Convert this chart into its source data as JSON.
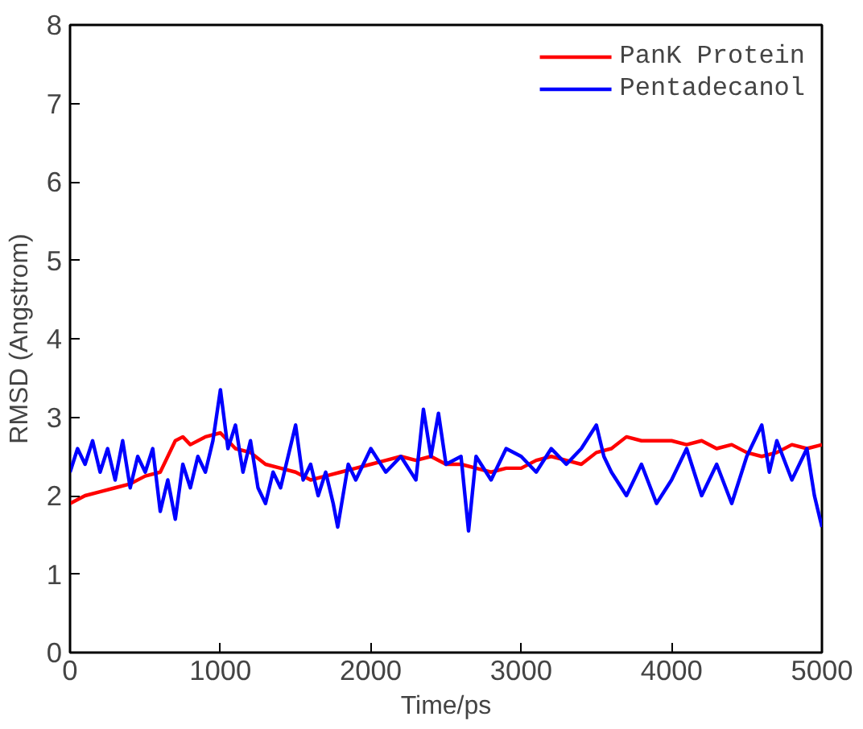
{
  "chart_data": {
    "type": "line",
    "xlabel": "Time/ps",
    "ylabel": "RMSD (Angstrom)",
    "xlim": [
      0,
      5000
    ],
    "ylim": [
      0,
      8
    ],
    "xticks": [
      0,
      1000,
      2000,
      3000,
      4000,
      5000
    ],
    "yticks": [
      0,
      1,
      2,
      3,
      4,
      5,
      6,
      7,
      8
    ],
    "grid": false,
    "legend": "top right",
    "line_style": "solid",
    "marker": "none",
    "series": [
      {
        "name": "PanK Protein",
        "color": "#ff0000",
        "x": [
          0,
          100,
          200,
          300,
          400,
          500,
          600,
          700,
          750,
          800,
          900,
          1000,
          1100,
          1200,
          1300,
          1400,
          1500,
          1600,
          1700,
          1800,
          1900,
          2000,
          2100,
          2200,
          2300,
          2400,
          2500,
          2600,
          2700,
          2800,
          2900,
          3000,
          3100,
          3200,
          3300,
          3400,
          3500,
          3600,
          3700,
          3800,
          3900,
          4000,
          4100,
          4200,
          4300,
          4400,
          4500,
          4600,
          4700,
          4800,
          4900,
          5000
        ],
        "values": [
          1.9,
          2.0,
          2.05,
          2.1,
          2.15,
          2.25,
          2.3,
          2.7,
          2.75,
          2.65,
          2.75,
          2.8,
          2.6,
          2.55,
          2.4,
          2.35,
          2.3,
          2.2,
          2.25,
          2.3,
          2.35,
          2.4,
          2.45,
          2.5,
          2.45,
          2.5,
          2.4,
          2.4,
          2.35,
          2.3,
          2.35,
          2.35,
          2.45,
          2.5,
          2.45,
          2.4,
          2.55,
          2.6,
          2.75,
          2.7,
          2.7,
          2.7,
          2.65,
          2.7,
          2.6,
          2.65,
          2.55,
          2.5,
          2.55,
          2.65,
          2.6,
          2.65
        ]
      },
      {
        "name": "Pentadecanol",
        "color": "#0000ff",
        "x": [
          0,
          50,
          100,
          150,
          200,
          250,
          300,
          350,
          400,
          450,
          500,
          550,
          600,
          650,
          700,
          750,
          800,
          850,
          900,
          950,
          1000,
          1050,
          1100,
          1150,
          1200,
          1250,
          1300,
          1350,
          1400,
          1450,
          1500,
          1550,
          1600,
          1650,
          1700,
          1750,
          1780,
          1850,
          1900,
          2000,
          2100,
          2200,
          2300,
          2350,
          2400,
          2450,
          2500,
          2600,
          2650,
          2700,
          2800,
          2900,
          3000,
          3100,
          3200,
          3300,
          3400,
          3500,
          3550,
          3600,
          3700,
          3800,
          3900,
          4000,
          4100,
          4200,
          4300,
          4400,
          4500,
          4600,
          4650,
          4700,
          4800,
          4900,
          4950,
          5000
        ],
        "values": [
          2.3,
          2.6,
          2.4,
          2.7,
          2.3,
          2.6,
          2.2,
          2.7,
          2.1,
          2.5,
          2.3,
          2.6,
          1.8,
          2.2,
          1.7,
          2.4,
          2.1,
          2.5,
          2.3,
          2.7,
          3.35,
          2.6,
          2.9,
          2.3,
          2.7,
          2.1,
          1.9,
          2.3,
          2.1,
          2.5,
          2.9,
          2.2,
          2.4,
          2.0,
          2.3,
          1.9,
          1.6,
          2.4,
          2.2,
          2.6,
          2.3,
          2.5,
          2.2,
          3.1,
          2.5,
          3.05,
          2.4,
          2.5,
          1.55,
          2.5,
          2.2,
          2.6,
          2.5,
          2.3,
          2.6,
          2.4,
          2.6,
          2.9,
          2.5,
          2.3,
          2.0,
          2.4,
          1.9,
          2.2,
          2.6,
          2.0,
          2.4,
          1.9,
          2.5,
          2.9,
          2.3,
          2.7,
          2.2,
          2.6,
          2.0,
          1.6
        ]
      }
    ]
  }
}
